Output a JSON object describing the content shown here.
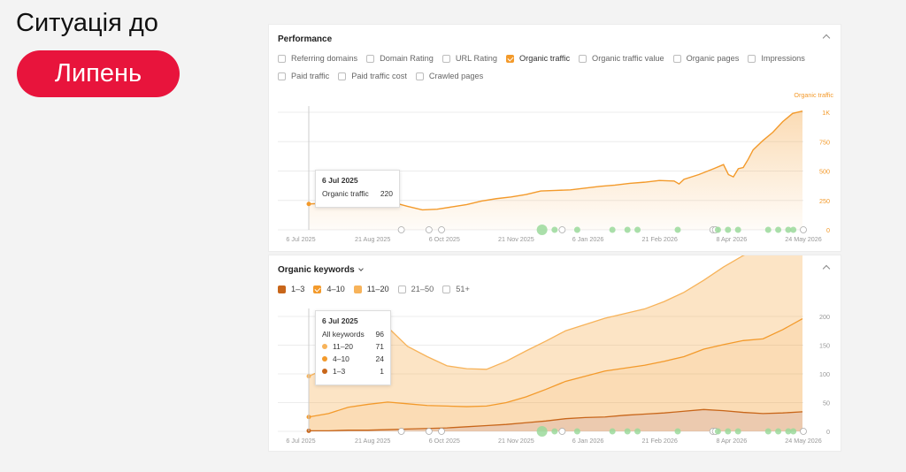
{
  "slide": {
    "title": "Ситуація до",
    "month": "Липень"
  },
  "performance": {
    "title": "Performance",
    "metrics_row1": [
      {
        "label": "Referring domains",
        "checked": false
      },
      {
        "label": "Domain Rating",
        "checked": false
      },
      {
        "label": "URL Rating",
        "checked": false
      },
      {
        "label": "Organic traffic",
        "checked": true
      },
      {
        "label": "Organic traffic value",
        "checked": false
      },
      {
        "label": "Organic pages",
        "checked": false
      },
      {
        "label": "Impressions",
        "checked": false
      }
    ],
    "metrics_row2": [
      {
        "label": "Paid traffic",
        "checked": false
      },
      {
        "label": "Paid traffic cost",
        "checked": false
      },
      {
        "label": "Crawled pages",
        "checked": false
      }
    ],
    "tooltip": {
      "date": "6 Jul 2025",
      "label": "Organic traffic",
      "value": "220"
    }
  },
  "keywords": {
    "title": "Organic keywords",
    "filters": [
      {
        "label": "1–3",
        "checked": true,
        "style": "dark"
      },
      {
        "label": "4–10",
        "checked": true,
        "style": "on"
      },
      {
        "label": "11–20",
        "checked": true,
        "style": "light"
      },
      {
        "label": "21–50",
        "checked": false,
        "style": ""
      },
      {
        "label": "51+",
        "checked": false,
        "style": ""
      }
    ],
    "tooltip": {
      "date": "6 Jul 2025",
      "rows": [
        {
          "label": "All keywords",
          "value": "96",
          "color": ""
        },
        {
          "label": "11–20",
          "value": "71",
          "color": "#f7b35a"
        },
        {
          "label": "4–10",
          "value": "24",
          "color": "#f39a2b"
        },
        {
          "label": "1–3",
          "value": "1",
          "color": "#c8661a"
        }
      ]
    }
  },
  "chart_data": [
    {
      "type": "area",
      "title": "Performance",
      "series_label": "Organic traffic",
      "x_ticks": [
        "6 Jul 2025",
        "21 Aug 2025",
        "6 Oct 2025",
        "21 Nov 2025",
        "6 Jan 2026",
        "21 Feb 2026",
        "8 Apr 2026",
        "24 May 2026"
      ],
      "y_ticks": [
        "0",
        "250",
        "500",
        "750",
        "1K"
      ],
      "ylim": [
        0,
        1100
      ],
      "color": "#f39a2b",
      "series": [
        {
          "name": "Organic traffic",
          "x": [
            0,
            0.03,
            0.06,
            0.1,
            0.14,
            0.18,
            0.2,
            0.23,
            0.26,
            0.29,
            0.32,
            0.35,
            0.38,
            0.41,
            0.44,
            0.47,
            0.5,
            0.53,
            0.56,
            0.59,
            0.62,
            0.65,
            0.68,
            0.71,
            0.74,
            0.75,
            0.76,
            0.79,
            0.82,
            0.84,
            0.85,
            0.86,
            0.87,
            0.88,
            0.89,
            0.9,
            0.92,
            0.94,
            0.96,
            0.98,
            1.0
          ],
          "y": [
            220,
            225,
            228,
            230,
            225,
            222,
            200,
            170,
            175,
            195,
            215,
            245,
            265,
            280,
            300,
            330,
            335,
            340,
            355,
            370,
            380,
            395,
            405,
            420,
            415,
            390,
            430,
            470,
            520,
            555,
            470,
            450,
            520,
            530,
            600,
            680,
            760,
            830,
            920,
            990,
            1010
          ]
        }
      ],
      "markers": [
        "6 Jul 2025",
        "21 Aug 2025",
        "6 Oct 2025",
        "21 Nov 2025",
        "6 Jan 2026",
        "21 Feb 2026",
        "8 Apr 2026",
        "24 May 2026"
      ]
    },
    {
      "type": "area",
      "title": "Organic keywords",
      "x_ticks": [
        "6 Jul 2025",
        "21 Aug 2025",
        "6 Oct 2025",
        "21 Nov 2025",
        "6 Jan 2026",
        "21 Feb 2026",
        "8 Apr 2026",
        "24 May 2026"
      ],
      "y_ticks": [
        "0",
        "50",
        "100",
        "150",
        "200"
      ],
      "ylim": [
        0,
        200
      ],
      "stacked": true,
      "x": [
        0,
        0.04,
        0.08,
        0.12,
        0.16,
        0.2,
        0.24,
        0.28,
        0.32,
        0.36,
        0.4,
        0.44,
        0.48,
        0.52,
        0.56,
        0.6,
        0.64,
        0.68,
        0.72,
        0.76,
        0.8,
        0.84,
        0.88,
        0.92,
        0.96,
        1.0
      ],
      "series": [
        {
          "name": "1–3",
          "color": "#c8661a",
          "values": [
            1,
            1,
            2,
            2,
            3,
            4,
            5,
            6,
            8,
            10,
            12,
            15,
            18,
            22,
            24,
            25,
            28,
            30,
            32,
            35,
            38,
            36,
            33,
            31,
            32,
            34
          ]
        },
        {
          "name": "4–10",
          "color": "#f39a2b",
          "values": [
            24,
            30,
            40,
            45,
            48,
            44,
            40,
            38,
            35,
            34,
            38,
            45,
            55,
            65,
            72,
            80,
            82,
            85,
            90,
            95,
            105,
            115,
            125,
            130,
            145,
            162
          ]
        },
        {
          "name": "11–20",
          "color": "#f7b35a",
          "values": [
            71,
            80,
            120,
            150,
            130,
            100,
            85,
            70,
            66,
            64,
            72,
            80,
            84,
            88,
            90,
            92,
            95,
            98,
            104,
            112,
            120,
            135,
            148,
            160,
            168,
            175
          ]
        }
      ]
    }
  ]
}
